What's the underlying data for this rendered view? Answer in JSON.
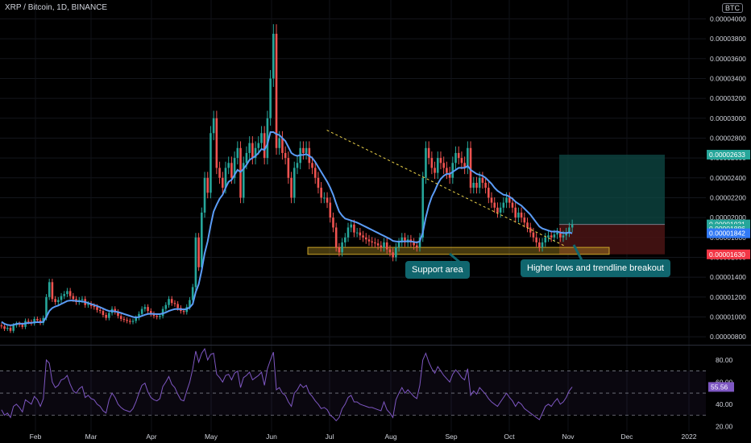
{
  "header": {
    "title": "XRP / Bitcoin, 1D, BINANCE",
    "currency_badge": "BTC"
  },
  "colors": {
    "background": "#000000",
    "up": "#26a69a",
    "down": "#ef5350",
    "ma_line": "#5b9cf6",
    "rsi_line": "#7e57c2",
    "support_zone": "#c9a227",
    "trendline": "#f0d64b",
    "target_zone": "#0e4a45",
    "stop_zone": "#4a1414"
  },
  "annotations": {
    "support": "Support area",
    "breakout": "Higher lows and trendline breakout"
  },
  "chart_data": [
    {
      "type": "candlestick",
      "title": "XRP / Bitcoin, 1D, BINANCE",
      "unit": "BTC",
      "x_ticks": [
        "Feb",
        "Mar",
        "Apr",
        "May",
        "Jun",
        "Jul",
        "Aug",
        "Sep",
        "Oct",
        "Nov",
        "Dec",
        "2022"
      ],
      "y_ticks": [
        "0.00000800",
        "0.00001000",
        "0.00001200",
        "0.00001400",
        "0.00001600",
        "0.00001800",
        "0.00002000",
        "0.00002200",
        "0.00002400",
        "0.00002600",
        "0.00002800",
        "0.00003000",
        "0.00003200",
        "0.00003400",
        "0.00003600",
        "0.00003800",
        "0.00004000"
      ],
      "ylim": [
        7.2e-06,
        4.19e-05
      ],
      "price_labels": [
        {
          "text": "0.00002633",
          "value": 2.633e-05,
          "color": "#26a69a"
        },
        {
          "text": "0.00001931",
          "value": 1.931e-05,
          "color": "#26a69a"
        },
        {
          "text": "0.00001886",
          "value": 1.886e-05,
          "color": "#26a69a"
        },
        {
          "text": "0.00001842",
          "value": 1.842e-05,
          "color": "#3179f5"
        },
        {
          "text": "0.00001630",
          "value": 1.63e-05,
          "color": "#f23645"
        }
      ],
      "closes": [
        9.05e-06,
        8.8e-06,
        8.9e-06,
        8.6e-06,
        9.15e-06,
        9.3e-06,
        9.2e-06,
        9e-06,
        9.6e-06,
        9.5e-06,
        9.35e-06,
        9.8e-06,
        9.65e-06,
        9.4e-06,
        9.9e-06,
        1.2e-05,
        1.35e-05,
        1.18e-05,
        1.15e-05,
        1.17e-05,
        1.21e-05,
        1.23e-05,
        1.26e-05,
        1.21e-05,
        1.18e-05,
        1.15e-05,
        1.17e-05,
        1.18e-05,
        1.12e-05,
        1.13e-05,
        1.11e-05,
        1.1e-05,
        1.07e-05,
        1.06e-05,
        1.02e-05,
        9.9e-06,
        1.04e-05,
        1.08e-05,
        1.05e-05,
        1.01e-05,
        9.8e-06,
        9.7e-06,
        9.6e-06,
        9.5e-06,
        9.6e-06,
        9.9e-06,
        1.03e-05,
        1.08e-05,
        1.1e-05,
        1.06e-05,
        1.03e-05,
        1.01e-05,
        1e-05,
        1.01e-05,
        1.08e-05,
        1.12e-05,
        1.18e-05,
        1.14e-05,
        1.13e-05,
        1.09e-05,
        1.06e-05,
        1.05e-05,
        1.1e-05,
        1.17e-05,
        1.3e-05,
        1.8e-05,
        1.5e-05,
        2.05e-05,
        2.4e-05,
        2.25e-05,
        2.85e-05,
        3e-05,
        2.5e-05,
        2.4e-05,
        2.3e-05,
        2.5e-05,
        2.55e-05,
        2.4e-05,
        2.6e-05,
        2.7e-05,
        2.2e-05,
        2.55e-05,
        2.65e-05,
        2.75e-05,
        2.6e-05,
        2.7e-05,
        2.75e-05,
        2.85e-05,
        2.6e-05,
        3e-05,
        3.4e-05,
        3.85e-05,
        2.7e-05,
        2.8e-05,
        2.65e-05,
        2.6e-05,
        2.4e-05,
        2.2e-05,
        2.5e-05,
        2.55e-05,
        2.7e-05,
        2.65e-05,
        2.7e-05,
        2.55e-05,
        2.5e-05,
        2.4e-05,
        2.3e-05,
        2.2e-05,
        2.2e-05,
        2.15e-05,
        2e-05,
        1.9e-05,
        1.7e-05,
        1.65e-05,
        1.75e-05,
        1.8e-05,
        1.9e-05,
        1.93e-05,
        1.85e-05,
        1.85e-05,
        1.82e-05,
        1.8e-05,
        1.78e-05,
        1.76e-05,
        1.75e-05,
        1.74e-05,
        1.72e-05,
        1.7e-05,
        1.75e-05,
        1.68e-05,
        1.65e-05,
        1.6e-05,
        1.7e-05,
        1.75e-05,
        1.8e-05,
        1.75e-05,
        1.78e-05,
        1.75e-05,
        1.72e-05,
        1.7e-05,
        1.8e-05,
        2.4e-05,
        2.7e-05,
        2.6e-05,
        2.5e-05,
        2.45e-05,
        2.6e-05,
        2.55e-05,
        2.5e-05,
        2.45e-05,
        2.4e-05,
        2.55e-05,
        2.65e-05,
        2.6e-05,
        2.55e-05,
        2.5e-05,
        2.7e-05,
        2.3e-05,
        2.35e-05,
        2.3e-05,
        2.4e-05,
        2.35e-05,
        2.3e-05,
        2.2e-05,
        2.15e-05,
        2.1e-05,
        2.05e-05,
        2.1e-05,
        2.15e-05,
        2.2e-05,
        2.15e-05,
        2.1e-05,
        2e-05,
        2.05e-05,
        2e-05,
        1.95e-05,
        1.9e-05,
        1.85e-05,
        1.8e-05,
        1.75e-05,
        1.7e-05,
        1.75e-05,
        1.8e-05,
        1.82e-05,
        1.8e-05,
        1.83e-05,
        1.85e-05,
        1.8e-05,
        1.82e-05,
        1.85e-05,
        1.9e-05,
        1.931e-05
      ],
      "moving_average": [
        9.5e-06,
        9.3e-06,
        9.2e-06,
        9.15e-06,
        9.2e-06,
        9.3e-06,
        9.35e-06,
        9.3e-06,
        9.35e-06,
        9.4e-06,
        9.4e-06,
        9.45e-06,
        9.48e-06,
        9.45e-06,
        9.5e-06,
        1e-05,
        1.06e-05,
        1.09e-05,
        1.105e-05,
        1.115e-05,
        1.13e-05,
        1.145e-05,
        1.16e-05,
        1.165e-05,
        1.165e-05,
        1.16e-05,
        1.158e-05,
        1.155e-05,
        1.15e-05,
        1.14e-05,
        1.13e-05,
        1.12e-05,
        1.11e-05,
        1.098e-05,
        1.085e-05,
        1.07e-05,
        1.06e-05,
        1.058e-05,
        1.055e-05,
        1.048e-05,
        1.04e-05,
        1.03e-05,
        1.02e-05,
        1.01e-05,
        1e-05,
        9.95e-06,
        9.98e-06,
        1.01e-05,
        1.022e-05,
        1.03e-05,
        1.032e-05,
        1.03e-05,
        1.028e-05,
        1.028e-05,
        1.035e-05,
        1.045e-05,
        1.06e-05,
        1.07e-05,
        1.078e-05,
        1.08e-05,
        1.078e-05,
        1.075e-05,
        1.08e-05,
        1.095e-05,
        1.13e-05,
        1.25e-05,
        1.33e-05,
        1.47e-05,
        1.64e-05,
        1.76e-05,
        1.92e-05,
        2.06e-05,
        2.13e-05,
        2.19e-05,
        2.23e-05,
        2.3e-05,
        2.36e-05,
        2.38e-05,
        2.43e-05,
        2.48e-05,
        2.46e-05,
        2.49e-05,
        2.53e-05,
        2.58e-05,
        2.6e-05,
        2.62e-05,
        2.65e-05,
        2.69e-05,
        2.68e-05,
        2.74e-05,
        2.86e-05,
        2.86e-05,
        2.84e-05,
        2.83e-05,
        2.8e-05,
        2.77e-05,
        2.71e-05,
        2.65e-05,
        2.63e-05,
        2.62e-05,
        2.63e-05,
        2.63e-05,
        2.64e-05,
        2.62e-05,
        2.6e-05,
        2.56e-05,
        2.51e-05,
        2.46e-05,
        2.41e-05,
        2.36e-05,
        2.3e-05,
        2.23e-05,
        2.14e-05,
        2.06e-05,
        2.02e-05,
        1.99e-05,
        1.98e-05,
        1.97e-05,
        1.96e-05,
        1.95e-05,
        1.935e-05,
        1.92e-05,
        1.905e-05,
        1.89e-05,
        1.875e-05,
        1.86e-05,
        1.845e-05,
        1.83e-05,
        1.815e-05,
        1.8e-05,
        1.785e-05,
        1.765e-05,
        1.76e-05,
        1.758e-05,
        1.76e-05,
        1.76e-05,
        1.762e-05,
        1.76e-05,
        1.755e-05,
        1.75e-05,
        1.76e-05,
        1.85e-05,
        2e-05,
        2.12e-05,
        2.21e-05,
        2.27e-05,
        2.34e-05,
        2.39e-05,
        2.42e-05,
        2.44e-05,
        2.44e-05,
        2.46e-05,
        2.48e-05,
        2.5e-05,
        2.5e-05,
        2.5e-05,
        2.52e-05,
        2.48e-05,
        2.46e-05,
        2.44e-05,
        2.43e-05,
        2.42e-05,
        2.4e-05,
        2.37e-05,
        2.34e-05,
        2.3e-05,
        2.27e-05,
        2.25e-05,
        2.23e-05,
        2.225e-05,
        2.21e-05,
        2.19e-05,
        2.16e-05,
        2.14e-05,
        2.12e-05,
        2.09e-05,
        2.06e-05,
        2.03e-05,
        1.99e-05,
        1.95e-05,
        1.91e-05,
        1.89e-05,
        1.88e-05,
        1.87e-05,
        1.86e-05,
        1.858e-05,
        1.86e-05,
        1.85e-05,
        1.845e-05,
        1.845e-05,
        1.85e-05,
        1.842e-05
      ],
      "support_zone": [
        1.63e-05,
        1.7e-05
      ],
      "trendline": {
        "from": [
          2.88e-05,
          0.57
        ],
        "to": [
          1.84e-05,
          0.96
        ]
      },
      "position": {
        "target": 2.633e-05,
        "entry": 1.931e-05,
        "stop": 1.63e-05
      }
    },
    {
      "type": "line",
      "title": "RSI",
      "y_ticks": [
        "80.00",
        "60.00",
        "40.00",
        "20.00"
      ],
      "ylim": [
        18,
        93
      ],
      "band": [
        30,
        70
      ],
      "midline": 50,
      "last_value_text": "55.56",
      "values": [
        35,
        30,
        32,
        28,
        38,
        40,
        37,
        33,
        44,
        42,
        40,
        47,
        44,
        38,
        45,
        80,
        77,
        60,
        55,
        57,
        62,
        63,
        66,
        58,
        52,
        50,
        54,
        56,
        46,
        48,
        45,
        44,
        40,
        38,
        34,
        32,
        44,
        50,
        46,
        40,
        37,
        35,
        34,
        33,
        36,
        42,
        50,
        57,
        59,
        51,
        46,
        44,
        43,
        45,
        56,
        60,
        65,
        58,
        55,
        49,
        44,
        43,
        52,
        60,
        72,
        88,
        78,
        86,
        90,
        80,
        85,
        86,
        67,
        64,
        60,
        66,
        67,
        62,
        68,
        70,
        55,
        64,
        66,
        69,
        62,
        64,
        66,
        69,
        57,
        72,
        80,
        87,
        53,
        55,
        50,
        48,
        42,
        38,
        50,
        53,
        58,
        55,
        57,
        50,
        47,
        43,
        40,
        36,
        37,
        35,
        30,
        28,
        25,
        28,
        36,
        40,
        46,
        48,
        42,
        42,
        40,
        39,
        38,
        37,
        37,
        36,
        35,
        34,
        42,
        35,
        32,
        28,
        44,
        50,
        55,
        50,
        53,
        50,
        47,
        45,
        57,
        80,
        86,
        78,
        72,
        68,
        74,
        70,
        66,
        63,
        60,
        67,
        71,
        68,
        64,
        62,
        72,
        48,
        52,
        49,
        55,
        52,
        49,
        45,
        42,
        40,
        38,
        42,
        46,
        50,
        46,
        43,
        38,
        42,
        40,
        36,
        34,
        32,
        30,
        28,
        26,
        32,
        38,
        40,
        38,
        42,
        45,
        40,
        42,
        46,
        52,
        55.56
      ]
    }
  ]
}
